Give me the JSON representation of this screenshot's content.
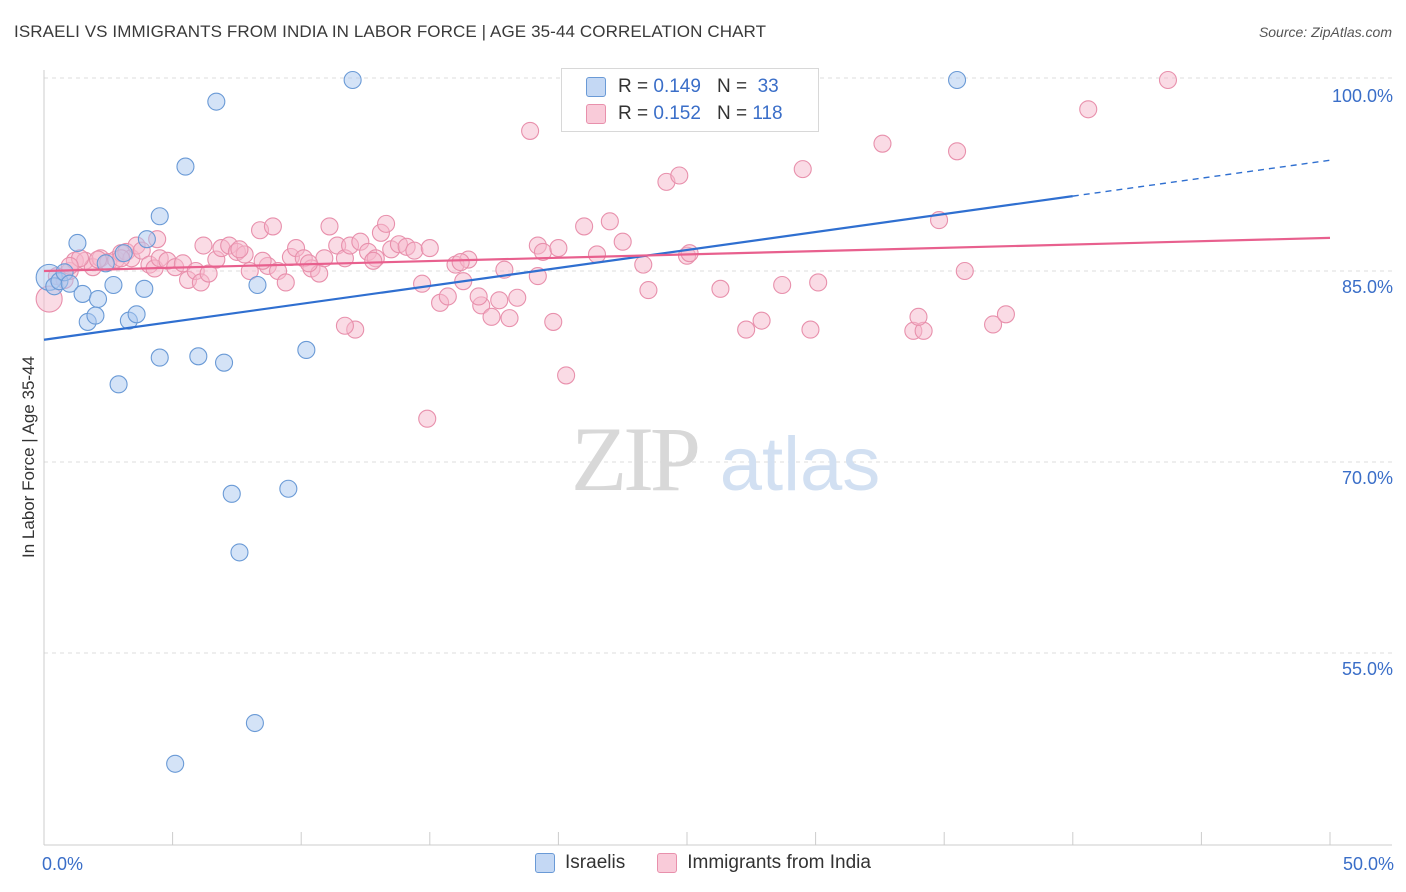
{
  "title": "ISRAELI VS IMMIGRANTS FROM INDIA IN LABOR FORCE | AGE 35-44 CORRELATION CHART",
  "source": "Source: ZipAtlas.com",
  "watermark": {
    "zip": "ZIP",
    "atlas": "atlas"
  },
  "legend_top": {
    "rows": [
      {
        "r_label": "R =",
        "r_value": "0.149",
        "n_label": "N =",
        "n_value": "33"
      },
      {
        "r_label": "R =",
        "r_value": "0.152",
        "n_label": "N =",
        "n_value": "118"
      }
    ]
  },
  "colors": {
    "blue_fill": "#aac8f0",
    "blue_stroke": "#6a9ad6",
    "blue_line": "#2f6fd0",
    "pink_fill": "#f6b8cc",
    "pink_stroke": "#e890ac",
    "pink_line": "#e8608e",
    "axis_tick_label": "#3a6ec8",
    "grid": "#dddddd"
  },
  "chart_data": {
    "type": "scatter",
    "title": "ISRAELI VS IMMIGRANTS FROM INDIA IN LABOR FORCE | AGE 35-44 CORRELATION CHART",
    "xlabel": "",
    "ylabel": "In Labor Force | Age 35-44",
    "xlim": [
      0,
      50
    ],
    "ylim": [
      40,
      101
    ],
    "x_tick_labels": [
      {
        "value": 0,
        "label": "0.0%"
      },
      {
        "value": 50,
        "label": "50.0%"
      }
    ],
    "y_tick_labels": [
      {
        "value": 100,
        "label": "100.0%"
      },
      {
        "value": 85,
        "label": "85.0%"
      },
      {
        "value": 70,
        "label": "70.0%"
      },
      {
        "value": 55,
        "label": "55.0%"
      }
    ],
    "x_minor_ticks": [
      5,
      10,
      15,
      20,
      25,
      30,
      35,
      40,
      45,
      50
    ],
    "series": [
      {
        "name": "Israelis",
        "color": "#aac8f0",
        "trend": {
          "x0": 0,
          "y0": 79.6,
          "x1": 50,
          "y1": 93.7,
          "solid_until": 40
        },
        "points": [
          [
            0.2,
            84.5
          ],
          [
            0.4,
            83.8
          ],
          [
            0.6,
            84.2
          ],
          [
            0.8,
            84.9
          ],
          [
            1.0,
            84.0
          ],
          [
            1.3,
            87.2
          ],
          [
            1.5,
            83.2
          ],
          [
            1.7,
            81.0
          ],
          [
            2.1,
            82.8
          ],
          [
            2.0,
            81.5
          ],
          [
            2.7,
            83.9
          ],
          [
            2.9,
            76.1
          ],
          [
            3.3,
            81.1
          ],
          [
            3.6,
            81.6
          ],
          [
            3.9,
            83.6
          ],
          [
            4.5,
            78.2
          ],
          [
            4.5,
            89.3
          ],
          [
            4.0,
            87.5
          ],
          [
            5.5,
            93.2
          ],
          [
            6.0,
            78.3
          ],
          [
            6.7,
            98.3
          ],
          [
            7.0,
            77.8
          ],
          [
            7.3,
            67.5
          ],
          [
            7.6,
            62.9
          ],
          [
            8.2,
            49.5
          ],
          [
            8.3,
            83.9
          ],
          [
            9.5,
            67.9
          ],
          [
            10.2,
            78.8
          ],
          [
            12.0,
            100.0
          ],
          [
            5.1,
            46.3
          ],
          [
            35.5,
            100.0
          ],
          [
            2.4,
            85.6
          ],
          [
            3.1,
            86.4
          ]
        ]
      },
      {
        "name": "Immigrants from India",
        "color": "#f6b8cc",
        "trend": {
          "x0": 0,
          "y0": 85.0,
          "x1": 50,
          "y1": 87.6
        },
        "points": [
          [
            0.2,
            82.8
          ],
          [
            0.5,
            84.6
          ],
          [
            0.8,
            84.3
          ],
          [
            1.0,
            85.0
          ],
          [
            1.2,
            85.8
          ],
          [
            1.6,
            85.8
          ],
          [
            1.9,
            85.3
          ],
          [
            2.2,
            86.0
          ],
          [
            2.5,
            85.7
          ],
          [
            2.8,
            85.9
          ],
          [
            3.0,
            86.4
          ],
          [
            3.2,
            86.5
          ],
          [
            3.4,
            86.0
          ],
          [
            3.6,
            87.0
          ],
          [
            3.8,
            86.6
          ],
          [
            4.1,
            85.5
          ],
          [
            4.3,
            85.2
          ],
          [
            4.5,
            86.0
          ],
          [
            4.8,
            85.8
          ],
          [
            5.1,
            85.3
          ],
          [
            5.4,
            85.6
          ],
          [
            5.6,
            84.3
          ],
          [
            5.9,
            85.0
          ],
          [
            6.1,
            84.1
          ],
          [
            6.4,
            84.8
          ],
          [
            6.7,
            85.9
          ],
          [
            6.9,
            86.8
          ],
          [
            7.2,
            87.0
          ],
          [
            7.5,
            86.5
          ],
          [
            7.8,
            86.3
          ],
          [
            8.0,
            85.0
          ],
          [
            8.4,
            88.2
          ],
          [
            8.7,
            85.4
          ],
          [
            8.9,
            88.5
          ],
          [
            9.1,
            85.0
          ],
          [
            9.4,
            84.1
          ],
          [
            9.6,
            86.1
          ],
          [
            9.8,
            86.8
          ],
          [
            10.1,
            86.0
          ],
          [
            10.4,
            85.2
          ],
          [
            10.7,
            84.8
          ],
          [
            10.9,
            86.0
          ],
          [
            11.1,
            88.5
          ],
          [
            11.4,
            87.0
          ],
          [
            11.7,
            86.0
          ],
          [
            11.9,
            87.0
          ],
          [
            12.1,
            80.4
          ],
          [
            12.3,
            87.3
          ],
          [
            12.6,
            86.5
          ],
          [
            12.9,
            86.0
          ],
          [
            13.1,
            88.0
          ],
          [
            13.3,
            88.7
          ],
          [
            13.5,
            86.7
          ],
          [
            13.8,
            87.1
          ],
          [
            14.1,
            86.9
          ],
          [
            14.4,
            86.6
          ],
          [
            14.7,
            84.0
          ],
          [
            15.0,
            86.8
          ],
          [
            15.4,
            82.5
          ],
          [
            15.7,
            83.0
          ],
          [
            16.0,
            85.5
          ],
          [
            16.3,
            84.2
          ],
          [
            16.5,
            85.9
          ],
          [
            17.0,
            82.3
          ],
          [
            17.4,
            81.4
          ],
          [
            17.7,
            82.7
          ],
          [
            18.1,
            81.3
          ],
          [
            18.4,
            82.9
          ],
          [
            18.9,
            96.0
          ],
          [
            19.2,
            87.0
          ],
          [
            19.4,
            86.5
          ],
          [
            19.8,
            81.0
          ],
          [
            20.3,
            76.8
          ],
          [
            21.0,
            88.5
          ],
          [
            22.0,
            88.9
          ],
          [
            22.5,
            87.3
          ],
          [
            23.3,
            85.5
          ],
          [
            23.5,
            83.5
          ],
          [
            24.2,
            92.0
          ],
          [
            24.7,
            92.5
          ],
          [
            25.0,
            86.2
          ],
          [
            25.1,
            86.4
          ],
          [
            26.3,
            83.6
          ],
          [
            27.3,
            80.4
          ],
          [
            27.9,
            81.1
          ],
          [
            28.7,
            83.9
          ],
          [
            29.5,
            93.0
          ],
          [
            29.8,
            80.4
          ],
          [
            30.1,
            84.1
          ],
          [
            32.6,
            95.0
          ],
          [
            33.8,
            80.3
          ],
          [
            34.2,
            80.3
          ],
          [
            34.0,
            81.4
          ],
          [
            34.8,
            89.0
          ],
          [
            35.5,
            94.4
          ],
          [
            35.8,
            85.0
          ],
          [
            36.9,
            80.8
          ],
          [
            37.4,
            81.6
          ],
          [
            40.6,
            97.7
          ],
          [
            43.7,
            100.0
          ],
          [
            21.5,
            86.3
          ],
          [
            20.0,
            86.8
          ],
          [
            17.9,
            85.1
          ],
          [
            16.9,
            83.0
          ],
          [
            14.9,
            73.4
          ],
          [
            11.7,
            80.7
          ],
          [
            10.3,
            85.6
          ],
          [
            8.5,
            85.8
          ],
          [
            7.6,
            86.7
          ],
          [
            6.2,
            87.0
          ],
          [
            4.4,
            87.5
          ],
          [
            3.0,
            86.0
          ],
          [
            2.1,
            85.9
          ],
          [
            1.4,
            86.0
          ],
          [
            1.0,
            85.4
          ],
          [
            12.8,
            85.8
          ],
          [
            16.2,
            85.7
          ],
          [
            19.2,
            84.6
          ]
        ]
      }
    ]
  }
}
